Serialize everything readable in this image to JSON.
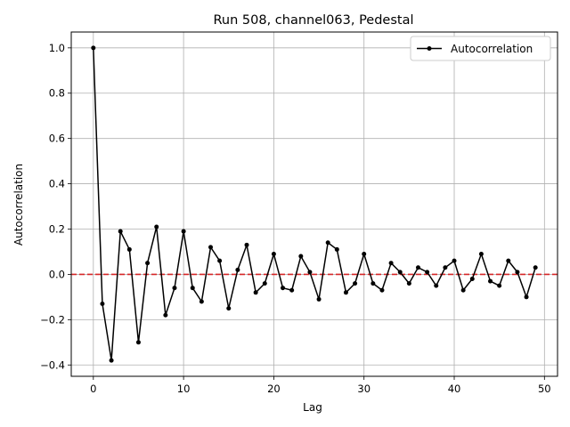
{
  "chart_data": {
    "type": "line",
    "title": "Run 508, channel063, Pedestal",
    "xlabel": "Lag",
    "ylabel": "Autocorrelation",
    "xlim": [
      -2.45,
      51.45
    ],
    "ylim": [
      -0.45,
      1.07
    ],
    "xticks": [
      0,
      10,
      20,
      30,
      40,
      50
    ],
    "yticks": [
      -0.4,
      -0.2,
      0.0,
      0.2,
      0.4,
      0.6,
      0.8,
      1.0
    ],
    "xtick_labels": [
      "0",
      "10",
      "20",
      "30",
      "40",
      "50"
    ],
    "ytick_labels": [
      "−0.4",
      "−0.2",
      "0.0",
      "0.2",
      "0.4",
      "0.6",
      "0.8",
      "1.0"
    ],
    "grid": true,
    "legend_position": "top-right",
    "reference_line": {
      "y": 0,
      "color": "#d62728",
      "style": "dashed"
    },
    "series": [
      {
        "name": "Autocorrelation",
        "color": "#000000",
        "marker": "circle",
        "x": [
          0,
          1,
          2,
          3,
          4,
          5,
          6,
          7,
          8,
          9,
          10,
          11,
          12,
          13,
          14,
          15,
          16,
          17,
          18,
          19,
          20,
          21,
          22,
          23,
          24,
          25,
          26,
          27,
          28,
          29,
          30,
          31,
          32,
          33,
          34,
          35,
          36,
          37,
          38,
          39,
          40,
          41,
          42,
          43,
          44,
          45,
          46,
          47,
          48,
          49
        ],
        "values": [
          1.0,
          -0.13,
          -0.38,
          0.19,
          0.11,
          -0.3,
          0.05,
          0.21,
          -0.18,
          -0.06,
          0.19,
          -0.06,
          -0.12,
          0.12,
          0.06,
          -0.15,
          0.02,
          0.13,
          -0.08,
          -0.04,
          0.09,
          -0.06,
          -0.07,
          0.08,
          0.01,
          -0.11,
          0.14,
          0.11,
          -0.08,
          -0.04,
          0.09,
          -0.04,
          -0.07,
          0.05,
          0.01,
          -0.04,
          0.03,
          0.01,
          -0.05,
          0.03,
          0.06,
          -0.07,
          -0.02,
          0.09,
          -0.03,
          -0.05,
          0.06,
          0.01,
          -0.1,
          0.03
        ]
      }
    ]
  }
}
